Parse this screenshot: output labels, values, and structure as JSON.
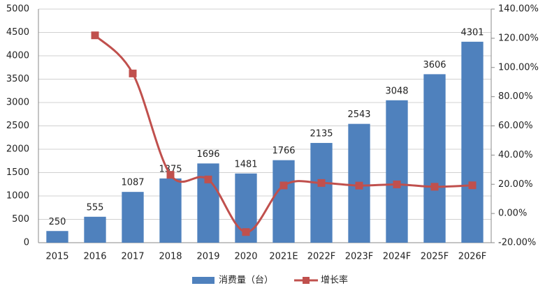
{
  "chart_data": {
    "type": "bar-line",
    "categories": [
      "2015",
      "2016",
      "2017",
      "2018",
      "2019",
      "2020",
      "2021E",
      "2022F",
      "2023F",
      "2024F",
      "2025F",
      "2026F"
    ],
    "series": [
      {
        "name": "消费量（台）",
        "type": "bar",
        "color": "#4f81bd",
        "values": [
          250,
          555,
          1087,
          1375,
          1696,
          1481,
          1766,
          2135,
          2543,
          3048,
          3606,
          4301
        ]
      },
      {
        "name": "增长率",
        "type": "line",
        "axis": "y2",
        "color": "#c0504d",
        "values": [
          null,
          122,
          95.9,
          26.5,
          23.3,
          -12.7,
          19.2,
          20.9,
          19.1,
          19.9,
          18.3,
          19.3
        ]
      }
    ],
    "ylim": [
      0,
      5000
    ],
    "yticks": [
      0,
      500,
      1000,
      1500,
      2000,
      2500,
      3000,
      3500,
      4000,
      4500,
      5000
    ],
    "y2lim": [
      -20,
      140
    ],
    "y2ticks": [
      {
        "value": -20,
        "label": "-20.00%"
      },
      {
        "value": 0,
        "label": "0.00%"
      },
      {
        "value": 20,
        "label": "20.00%"
      },
      {
        "value": 40,
        "label": "40.00%"
      },
      {
        "value": 60,
        "label": "60.00%"
      },
      {
        "value": 80,
        "label": "80.00%"
      },
      {
        "value": 100,
        "label": "100.00%"
      },
      {
        "value": 120,
        "label": "120.00%"
      },
      {
        "value": 140,
        "label": "140.00%"
      }
    ],
    "grid": true,
    "legend": "bottom"
  }
}
